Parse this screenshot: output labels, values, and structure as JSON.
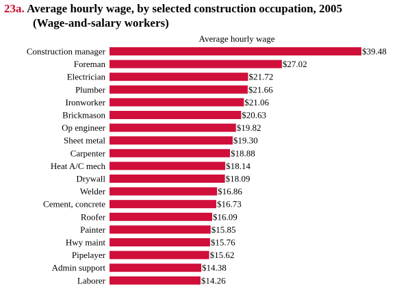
{
  "header": {
    "number": "23a.",
    "title": "Average hourly wage, by selected construction occupation, 2005",
    "subtitle": "(Wage-and-salary workers)"
  },
  "colors": {
    "bar": "#d0103a",
    "title_number": "#c8102e"
  },
  "chart_data": {
    "type": "bar",
    "orientation": "horizontal",
    "title": "Average hourly wage, by selected construction occupation, 2005",
    "subtitle": "(Wage-and-salary workers)",
    "xlabel": "Average hourly wage",
    "ylabel": "",
    "grid": false,
    "value_prefix": "$",
    "xlim": [
      0,
      39.48
    ],
    "categories": [
      "Construction manager",
      "Foreman",
      "Electrician",
      "Plumber",
      "Ironworker",
      "Brickmason",
      "Op engineer",
      "Sheet metal",
      "Carpenter",
      "Heat A/C mech",
      "Drywall",
      "Welder",
      "Cement, concrete",
      "Roofer",
      "Painter",
      "Hwy maint",
      "Pipelayer",
      "Admin support",
      "Laborer"
    ],
    "values": [
      39.48,
      27.02,
      21.72,
      21.66,
      21.06,
      20.63,
      19.82,
      19.3,
      18.88,
      18.14,
      18.09,
      16.86,
      16.73,
      16.09,
      15.85,
      15.76,
      15.62,
      14.38,
      14.26
    ],
    "value_labels": [
      "$39.48",
      "$27.02",
      "$21.72",
      "$21.66",
      "$21.06",
      "$20.63",
      "$19.82",
      "$19.30",
      "$18.88",
      "$18.14",
      "$18.09",
      "$16.86",
      "$16.73",
      "$16.09",
      "$15.85",
      "$15.76",
      "$15.62",
      "$14.38",
      "$14.26"
    ]
  }
}
